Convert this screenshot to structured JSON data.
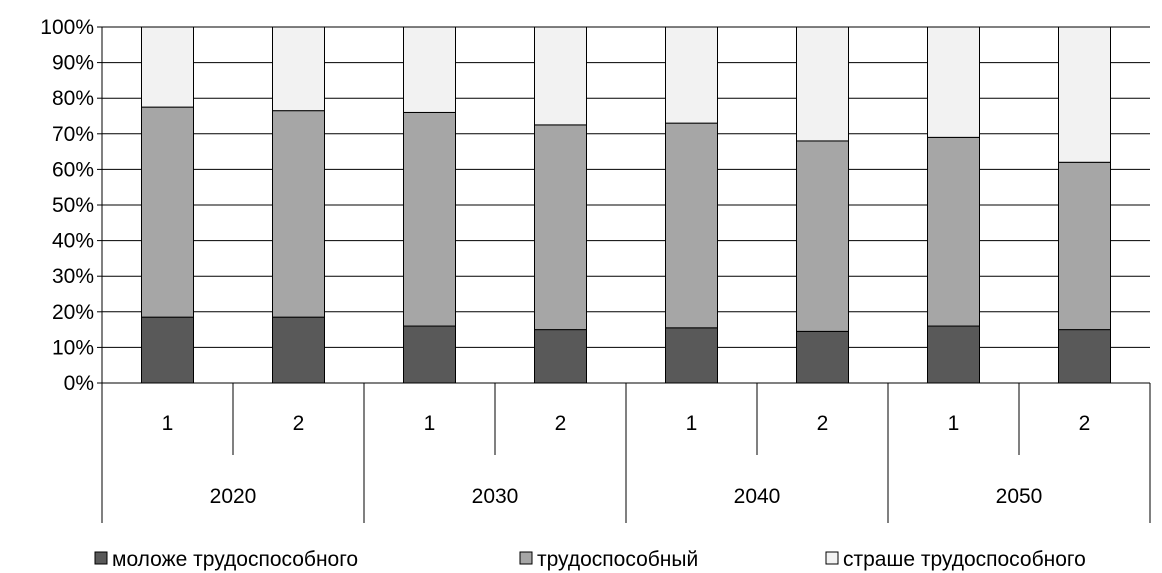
{
  "chart_data": {
    "type": "bar",
    "stacked": true,
    "percent": true,
    "title": "",
    "xlabel": "",
    "ylabel": "",
    "ylim": [
      0,
      100
    ],
    "y_ticks": [
      "0%",
      "10%",
      "20%",
      "30%",
      "40%",
      "50%",
      "60%",
      "70%",
      "80%",
      "90%",
      "100%"
    ],
    "grid": true,
    "legend_position": "bottom",
    "categories": [
      "1",
      "2",
      "1",
      "2",
      "1",
      "2",
      "1",
      "2"
    ],
    "groups": [
      "2020",
      "2030",
      "2040",
      "2050"
    ],
    "series": [
      {
        "name": "моложе трудоспособного",
        "color": "#595959",
        "values": [
          18.5,
          18.5,
          16.0,
          15.0,
          15.5,
          14.5,
          16.0,
          15.0
        ]
      },
      {
        "name": "трудоспособный",
        "color": "#a6a6a6",
        "values": [
          59.0,
          58.0,
          60.0,
          57.5,
          57.5,
          53.5,
          53.0,
          47.0
        ]
      },
      {
        "name": "страше трудоспособного",
        "color": "#f2f2f2",
        "values": [
          22.5,
          23.5,
          24.0,
          27.5,
          27.0,
          32.0,
          31.0,
          38.0
        ]
      }
    ]
  }
}
